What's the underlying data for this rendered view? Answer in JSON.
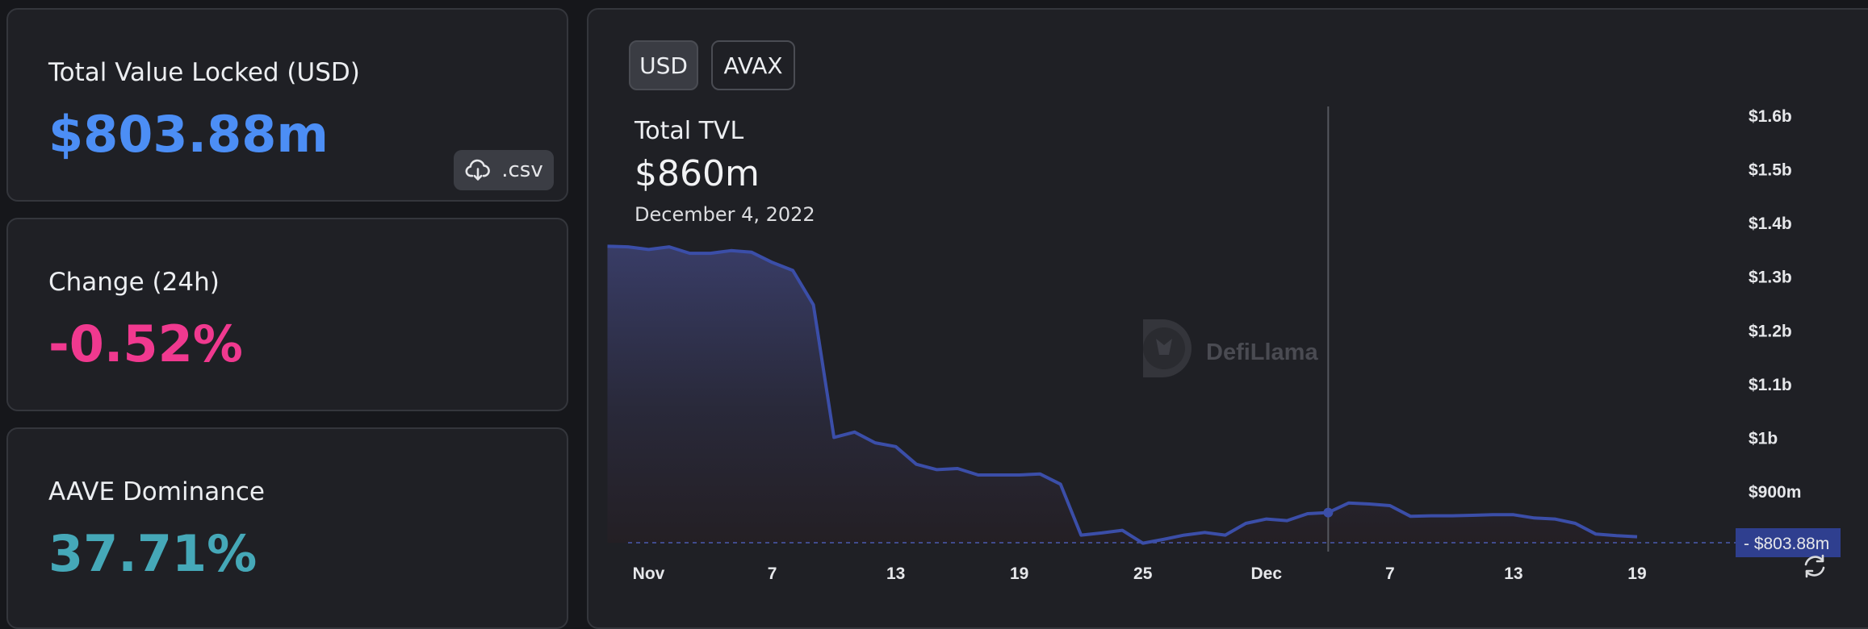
{
  "cards": {
    "tvl": {
      "label": "Total Value Locked (USD)",
      "value": "$803.88m",
      "color": "#4c8ef5",
      "csv_label": ".csv"
    },
    "change": {
      "label": "Change (24h)",
      "value": "-0.52%",
      "color": "#f0398f"
    },
    "dominance": {
      "label": "AAVE Dominance",
      "value": "37.71%",
      "color": "#45a8b8"
    }
  },
  "toggles": {
    "usd": "USD",
    "avax": "AVAX",
    "active": "USD"
  },
  "tooltip": {
    "title": "Total TVL",
    "value": "$860m",
    "date": "December 4, 2022"
  },
  "watermark": "DefiLlama",
  "current_price_label": "$803.88m",
  "colors": {
    "line": "#3b4ea8",
    "price_tag": "#2f3f8f",
    "background": "#1f2025"
  },
  "chart_data": {
    "type": "area",
    "title": "Total TVL",
    "ylim": [
      803.88,
      1600
    ],
    "y_ticks": [
      1600,
      1500,
      1400,
      1300,
      1200,
      1100,
      1000,
      900
    ],
    "y_tick_labels": [
      "$1.6b",
      "$1.5b",
      "$1.4b",
      "$1.3b",
      "$1.2b",
      "$1.1b",
      "$1b",
      "$900m"
    ],
    "x_ticks": [
      "2022-11-01",
      "2022-11-07",
      "2022-11-13",
      "2022-11-19",
      "2022-11-25",
      "2022-12-01",
      "2022-12-07",
      "2022-12-13",
      "2022-12-19"
    ],
    "x_tick_labels": [
      "Nov",
      "7",
      "13",
      "19",
      "25",
      "Dec",
      "7",
      "13",
      "19"
    ],
    "x_range": [
      "2022-10-31",
      "2022-12-23"
    ],
    "hover_date": "2022-12-04",
    "series": [
      {
        "dates": [
          "2022-10-30",
          "2022-10-31",
          "2022-11-01",
          "2022-11-02",
          "2022-11-03",
          "2022-11-04",
          "2022-11-05",
          "2022-11-06",
          "2022-11-07",
          "2022-11-08",
          "2022-11-09",
          "2022-11-10",
          "2022-11-11",
          "2022-11-12",
          "2022-11-13",
          "2022-11-14",
          "2022-11-15",
          "2022-11-16",
          "2022-11-17",
          "2022-11-18",
          "2022-11-19",
          "2022-11-20",
          "2022-11-21",
          "2022-11-22",
          "2022-11-23",
          "2022-11-24",
          "2022-11-25",
          "2022-11-26",
          "2022-11-27",
          "2022-11-28",
          "2022-11-29",
          "2022-11-30",
          "2022-12-01",
          "2022-12-02",
          "2022-12-03",
          "2022-12-04",
          "2022-12-05",
          "2022-12-06",
          "2022-12-07",
          "2022-12-08",
          "2022-12-09",
          "2022-12-10",
          "2022-12-11",
          "2022-12-12",
          "2022-12-13",
          "2022-12-14",
          "2022-12-15",
          "2022-12-16",
          "2022-12-17",
          "2022-12-18",
          "2022-12-19"
        ],
        "values": [
          1356,
          1355,
          1350,
          1355,
          1343,
          1343,
          1348,
          1345,
          1326,
          1311,
          1247,
          1000,
          1010,
          990,
          983,
          950,
          940,
          942,
          930,
          930,
          930,
          932,
          913,
          818,
          822,
          827,
          803,
          810,
          818,
          823,
          818,
          840,
          848,
          845,
          858,
          860,
          878,
          876,
          873,
          853,
          854,
          854,
          855,
          856,
          856,
          850,
          848,
          840,
          820,
          817,
          815
        ]
      }
    ]
  }
}
